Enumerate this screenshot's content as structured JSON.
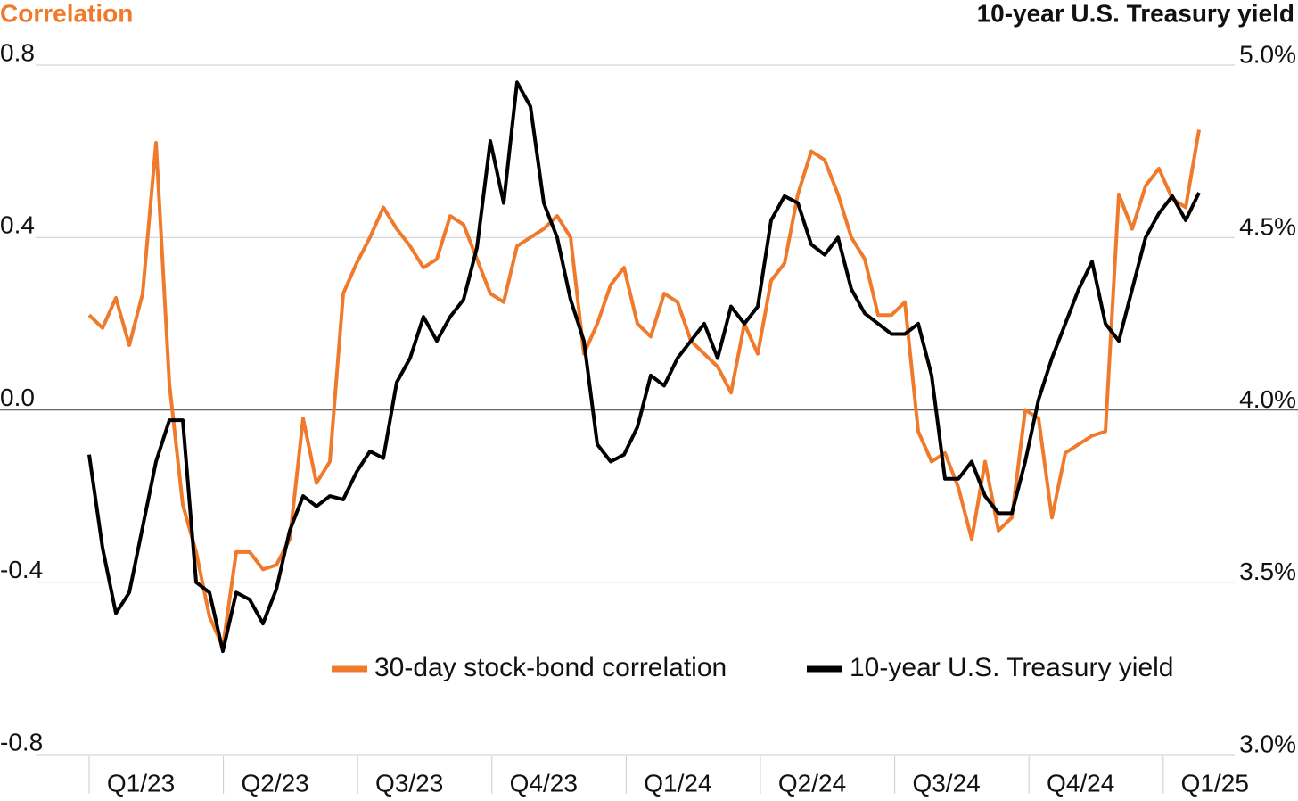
{
  "chart_data": {
    "type": "line",
    "left_title": "Correlation",
    "right_title": "10-year U.S. Treasury yield",
    "quarters": [
      "Q1/23",
      "Q2/23",
      "Q3/23",
      "Q4/23",
      "Q1/24",
      "Q2/24",
      "Q3/24",
      "Q4/24",
      "Q1/25"
    ],
    "ylim": [
      -0.8,
      0.8
    ],
    "yticks": [
      0.8,
      0.4,
      {
        "value": 0,
        "label": "0.0"
      },
      -0.4,
      -0.8
    ],
    "y2lim": [
      3.0,
      5.0
    ],
    "y2ticks": [
      {
        "value": 5.0,
        "label": "5.0%"
      },
      {
        "value": 4.5,
        "label": "4.5%"
      },
      {
        "value": 4.0,
        "label": "4.0%"
      },
      {
        "value": 3.5,
        "label": "3.5%"
      },
      {
        "value": 3.0,
        "label": "3.0%"
      }
    ],
    "grid": true,
    "legend": "bottom",
    "series": [
      {
        "name": "30-day stock-bond correlation",
        "color": "#f07a2c",
        "values": [
          0.22,
          0.19,
          0.26,
          0.15,
          0.27,
          0.62,
          0.06,
          -0.22,
          -0.33,
          -0.48,
          -0.55,
          -0.33,
          -0.33,
          -0.37,
          -0.36,
          -0.3,
          -0.02,
          -0.17,
          -0.12,
          0.27,
          0.34,
          0.4,
          0.47,
          0.42,
          0.38,
          0.33,
          0.35,
          0.45,
          0.43,
          0.35,
          0.27,
          0.25,
          0.38,
          0.4,
          0.42,
          0.45,
          0.4,
          0.13,
          0.2,
          0.29,
          0.33,
          0.2,
          0.17,
          0.27,
          0.25,
          0.16,
          0.13,
          0.1,
          0.04,
          0.2,
          0.13,
          0.3,
          0.34,
          0.5,
          0.6,
          0.58,
          0.5,
          0.4,
          0.35,
          0.22,
          0.22,
          0.25,
          -0.05,
          -0.12,
          -0.1,
          -0.18,
          -0.3,
          -0.12,
          -0.28,
          -0.25,
          0.0,
          -0.02,
          -0.25,
          -0.1,
          -0.08,
          -0.06,
          -0.05,
          0.5,
          0.42,
          0.52,
          0.56,
          0.49,
          0.47,
          0.65
        ]
      },
      {
        "name": "10-year U.S. Treasury yield",
        "color": "#000000",
        "axis": "y2",
        "values": [
          3.87,
          3.6,
          3.41,
          3.47,
          3.66,
          3.85,
          3.97,
          3.97,
          3.5,
          3.47,
          3.3,
          3.47,
          3.45,
          3.38,
          3.48,
          3.65,
          3.75,
          3.72,
          3.75,
          3.74,
          3.82,
          3.88,
          3.86,
          4.08,
          4.15,
          4.27,
          4.2,
          4.27,
          4.32,
          4.47,
          4.78,
          4.6,
          4.95,
          4.88,
          4.6,
          4.5,
          4.32,
          4.2,
          3.9,
          3.85,
          3.87,
          3.95,
          4.1,
          4.07,
          4.15,
          4.2,
          4.25,
          4.15,
          4.3,
          4.25,
          4.3,
          4.55,
          4.62,
          4.6,
          4.48,
          4.45,
          4.5,
          4.35,
          4.28,
          4.25,
          4.22,
          4.22,
          4.25,
          4.1,
          3.8,
          3.8,
          3.85,
          3.75,
          3.7,
          3.7,
          3.85,
          4.03,
          4.15,
          4.25,
          4.35,
          4.43,
          4.25,
          4.2,
          4.35,
          4.5,
          4.57,
          4.62,
          4.55,
          4.63
        ]
      }
    ]
  }
}
